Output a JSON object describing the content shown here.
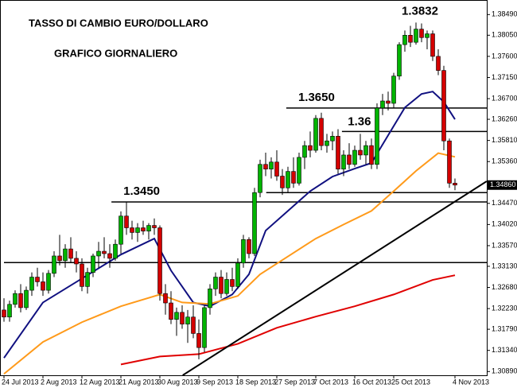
{
  "chart_data": {
    "type": "candlestick",
    "title": "TASSO DI CAMBIO EURO/DOLLARO",
    "subtitle": "GRAFICO GIORNALIERO",
    "categories": [
      "24 Jul 2013",
      null,
      null,
      null,
      null,
      null,
      null,
      "2 Aug 2013",
      null,
      null,
      null,
      null,
      null,
      null,
      "12 Aug 2013",
      null,
      null,
      null,
      null,
      null,
      null,
      "21 Aug 2013",
      null,
      null,
      null,
      null,
      null,
      null,
      "30 Aug 2013",
      null,
      null,
      null,
      null,
      null,
      null,
      "9 Sep 2013",
      null,
      null,
      null,
      null,
      null,
      null,
      "18 Sep 2013",
      null,
      null,
      null,
      null,
      null,
      null,
      "27 Sep 2013",
      null,
      null,
      null,
      null,
      null,
      null,
      "7 Oct 2013",
      null,
      null,
      null,
      null,
      null,
      null,
      "16 Oct 2013",
      null,
      null,
      null,
      null,
      null,
      null,
      "25 Oct 2013",
      null,
      null,
      null,
      null,
      null,
      null,
      null,
      null,
      null,
      null,
      "4 Nov 2013"
    ],
    "open": [
      1.322,
      1.3205,
      1.3232,
      1.3255,
      1.3225,
      1.3262,
      1.329,
      1.328,
      1.3262,
      1.3298,
      1.3335,
      1.3325,
      1.335,
      1.333,
      1.3318,
      1.327,
      1.33,
      1.3335,
      1.3345,
      1.334,
      1.333,
      1.336,
      1.342,
      1.3395,
      1.3385,
      1.3395,
      1.3388,
      1.34,
      1.3395,
      1.3255,
      1.3235,
      1.32,
      1.3215,
      1.319,
      1.3205,
      1.317,
      1.314,
      1.3225,
      1.3265,
      1.329,
      1.3255,
      1.3285,
      1.327,
      1.332,
      1.337,
      1.334,
      1.347,
      1.353,
      1.352,
      1.3535,
      1.3505,
      1.348,
      1.3515,
      1.349,
      1.3545,
      1.357,
      1.356,
      1.3628,
      1.357,
      1.358,
      1.359,
      1.352,
      1.355,
      1.353,
      1.356,
      1.355,
      1.357,
      1.353,
      1.365,
      1.3665,
      1.366,
      1.3718,
      1.3785,
      1.3805,
      1.379,
      1.3818,
      1.38,
      1.3808,
      1.376,
      1.373,
      1.358,
      1.349
    ],
    "high": [
      1.3245,
      1.324,
      1.3262,
      1.3275,
      1.327,
      1.33,
      1.331,
      1.33,
      1.3305,
      1.3345,
      1.338,
      1.336,
      1.3375,
      1.3345,
      1.333,
      1.331,
      1.334,
      1.3365,
      1.3375,
      1.336,
      1.337,
      1.343,
      1.345,
      1.341,
      1.3405,
      1.341,
      1.3405,
      1.3415,
      1.34,
      1.3275,
      1.326,
      1.3225,
      1.323,
      1.322,
      1.323,
      1.32,
      1.323,
      1.3275,
      1.33,
      1.3305,
      1.33,
      1.331,
      1.333,
      1.338,
      1.3375,
      1.348,
      1.354,
      1.3555,
      1.3545,
      1.356,
      1.352,
      1.3525,
      1.3545,
      1.3555,
      1.358,
      1.36,
      1.3635,
      1.364,
      1.3595,
      1.36,
      1.3605,
      1.356,
      1.3575,
      1.357,
      1.3595,
      1.358,
      1.3585,
      1.366,
      1.368,
      1.3685,
      1.3725,
      1.379,
      1.3815,
      1.3825,
      1.3832,
      1.383,
      1.3815,
      1.3815,
      1.3775,
      1.374,
      1.3585,
      1.35
    ],
    "low": [
      1.3195,
      1.3195,
      1.3225,
      1.3215,
      1.322,
      1.325,
      1.327,
      1.325,
      1.3255,
      1.329,
      1.3315,
      1.331,
      1.332,
      1.33,
      1.326,
      1.3255,
      1.329,
      1.331,
      1.333,
      1.331,
      1.3325,
      1.334,
      1.338,
      1.337,
      1.3365,
      1.338,
      1.337,
      1.338,
      1.324,
      1.321,
      1.319,
      1.3165,
      1.318,
      1.315,
      1.316,
      1.3115,
      1.313,
      1.321,
      1.325,
      1.3245,
      1.325,
      1.326,
      1.3265,
      1.331,
      1.333,
      1.3335,
      1.346,
      1.3505,
      1.35,
      1.3495,
      1.3465,
      1.347,
      1.348,
      1.3485,
      1.352,
      1.3545,
      1.3555,
      1.356,
      1.3555,
      1.356,
      1.351,
      1.3505,
      1.352,
      1.3525,
      1.354,
      1.353,
      1.352,
      1.352,
      1.3635,
      1.3645,
      1.365,
      1.371,
      1.377,
      1.378,
      1.3785,
      1.379,
      1.3775,
      1.375,
      1.372,
      1.356,
      1.348,
      1.3475
    ],
    "close": [
      1.3205,
      1.3232,
      1.3255,
      1.3225,
      1.3262,
      1.329,
      1.328,
      1.3262,
      1.3298,
      1.3335,
      1.3325,
      1.335,
      1.333,
      1.3318,
      1.327,
      1.33,
      1.3335,
      1.3345,
      1.334,
      1.333,
      1.336,
      1.342,
      1.3395,
      1.3385,
      1.3395,
      1.3388,
      1.34,
      1.3395,
      1.3255,
      1.3235,
      1.32,
      1.3215,
      1.319,
      1.3205,
      1.317,
      1.314,
      1.3225,
      1.3265,
      1.329,
      1.3255,
      1.3285,
      1.327,
      1.332,
      1.337,
      1.334,
      1.347,
      1.353,
      1.352,
      1.3535,
      1.3505,
      1.348,
      1.3515,
      1.349,
      1.3545,
      1.357,
      1.356,
      1.3628,
      1.357,
      1.358,
      1.359,
      1.352,
      1.355,
      1.353,
      1.356,
      1.355,
      1.357,
      1.353,
      1.365,
      1.3665,
      1.366,
      1.3718,
      1.3785,
      1.3805,
      1.379,
      1.3818,
      1.38,
      1.3808,
      1.376,
      1.373,
      1.358,
      1.349,
      1.3486
    ],
    "up_color": "#00b400",
    "down_color": "#d40000",
    "lines": [
      {
        "color": "#101080",
        "x": [
          0,
          7,
          14,
          21,
          27,
          30,
          34,
          37,
          41,
          44,
          47,
          51,
          55,
          59,
          63,
          66,
          69,
          72,
          75,
          77,
          79,
          81
        ],
        "values": [
          1.3118,
          1.3236,
          1.3287,
          1.3338,
          1.3372,
          1.3304,
          1.3236,
          1.3228,
          1.3253,
          1.3296,
          1.3389,
          1.3431,
          1.3473,
          1.3504,
          1.3521,
          1.3533,
          1.3592,
          1.3651,
          1.368,
          1.3685,
          1.3663,
          1.3626
        ]
      },
      {
        "color": "#ff9a1a",
        "x": [
          0,
          7,
          14,
          21,
          28,
          32,
          37,
          42,
          46,
          51,
          56,
          61,
          66,
          70,
          74,
          78,
          81
        ],
        "values": [
          1.3084,
          1.3152,
          1.3194,
          1.3228,
          1.3253,
          1.3236,
          1.3233,
          1.325,
          1.3296,
          1.3334,
          1.3372,
          1.3402,
          1.3431,
          1.3473,
          1.3516,
          1.3554,
          1.3546
        ]
      },
      {
        "color": "#e00000",
        "x": [
          21,
          28,
          35,
          42,
          49,
          56,
          63,
          70,
          77,
          81
        ],
        "values": [
          1.3104,
          1.3121,
          1.3126,
          1.3148,
          1.3182,
          1.3206,
          1.3228,
          1.3253,
          1.3284,
          1.3294
        ]
      },
      {
        "color": "#000000",
        "x": [
          32.1,
          86.7
        ],
        "values": [
          1.3081,
          1.3494
        ]
      }
    ],
    "levels": [
      {
        "start": 19.3,
        "value": 1.345,
        "label": "1.3450"
      },
      {
        "start": 50.7,
        "value": 1.365,
        "label": "1.3650"
      },
      {
        "start": 60.7,
        "value": 1.36
      },
      {
        "start": 47.1,
        "value": 1.347
      },
      {
        "start": 0,
        "value": 1.3321
      }
    ],
    "peak": {
      "value": 1.3832,
      "label": "1.3832"
    },
    "current_price": {
      "value": 1.3486,
      "label": "1.34860"
    },
    "ylim": [
      1.3081,
      1.388
    ],
    "yticks": [
      {
        "value": 1.3849,
        "label": "1.38490"
      },
      {
        "value": 1.3805,
        "label": "1.38050"
      },
      {
        "value": 1.376,
        "label": "1.37600"
      },
      {
        "value": 1.3715,
        "label": "1.37150"
      },
      {
        "value": 1.367,
        "label": "1.36700"
      },
      {
        "value": 1.3626,
        "label": "1.36260"
      },
      {
        "value": 1.3581,
        "label": "1.35810"
      },
      {
        "value": 1.3536,
        "label": "1.35360"
      },
      {
        "value": 1.3447,
        "label": "1.34470"
      },
      {
        "value": 1.3402,
        "label": "1.34020"
      },
      {
        "value": 1.3357,
        "label": "1.33570"
      },
      {
        "value": 1.3313,
        "label": "1.33130"
      },
      {
        "value": 1.3268,
        "label": "1.32680"
      },
      {
        "value": 1.3223,
        "label": "1.32230"
      },
      {
        "value": 1.3179,
        "label": "1.31790"
      },
      {
        "value": 1.3134,
        "label": "1.31340"
      },
      {
        "value": 1.3089,
        "label": "1.30890"
      }
    ]
  }
}
